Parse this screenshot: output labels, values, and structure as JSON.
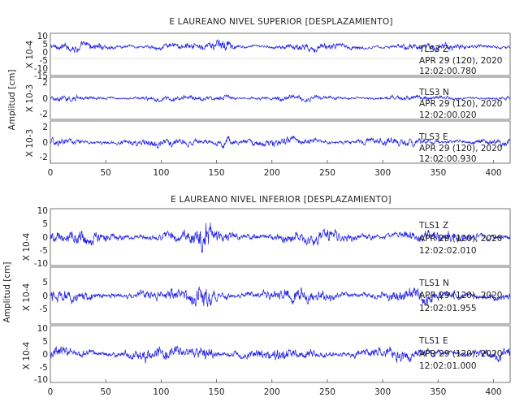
{
  "chart_data": [
    {
      "type": "line",
      "title": "E LAUREANO NIVEL SUPERIOR [DESPLAZAMIENTO]",
      "ylabel": "Amplitud [cm]",
      "xlim": [
        0,
        415
      ],
      "x_ticks": [
        "0",
        "50",
        "100",
        "150",
        "200",
        "250",
        "300",
        "350",
        "400"
      ],
      "series": [
        {
          "name": "TLS3  Z",
          "time": "APR 29 (120), 2020",
          "clock": "12:02:00.780",
          "scale_label": "X 10-4",
          "ylim": [
            -15,
            10
          ],
          "y_ticks": [
            "10",
            "5",
            "0",
            "-5",
            "-10",
            "-15"
          ],
          "color": "#1f1fe6",
          "baseline": 2,
          "amplitude": 4,
          "burst_center": 158
        },
        {
          "name": "TLS3  N",
          "time": "APR 29 (120), 2020",
          "clock": "12:02:00.020",
          "scale_label": "X 10-3",
          "ylim": [
            -2,
            2
          ],
          "y_ticks": [
            "2",
            "0",
            "-2"
          ],
          "color": "#1f1fe6",
          "baseline": 0,
          "amplitude": 0.45,
          "burst_center": 158
        },
        {
          "name": "TLS3  E",
          "time": "APR 29 (120), 2020",
          "clock": "12:02:00.930",
          "scale_label": "X 10-3",
          "ylim": [
            -3,
            3
          ],
          "y_ticks": [
            "2",
            "0",
            "-2"
          ],
          "color": "#1f1fe6",
          "baseline": 0,
          "amplitude": 1.0,
          "burst_center": 158
        }
      ]
    },
    {
      "type": "line",
      "title": "E LAUREANO NIVEL INFERIOR [DESPLAZAMIENTO]",
      "ylabel": "Amplitud [cm]",
      "xlim": [
        0,
        415
      ],
      "x_ticks": [
        "0",
        "50",
        "100",
        "150",
        "200",
        "250",
        "300",
        "350",
        "400"
      ],
      "series": [
        {
          "name": "TLS1  Z",
          "time": "APR 29 (120), 2020",
          "clock": "12:02:02.010",
          "scale_label": "X 10-4",
          "ylim": [
            -10,
            10
          ],
          "y_ticks": [
            "10",
            "5",
            "0",
            "-5",
            "-10"
          ],
          "color": "#1f1fe6",
          "baseline": 0,
          "amplitude": 4,
          "burst_center": 140
        },
        {
          "name": "TLS1  N",
          "time": "APR 29 (120), 2020",
          "clock": "12:02:01.955",
          "scale_label": "X 10-4",
          "ylim": [
            -10,
            10
          ],
          "y_ticks": [
            "5",
            "0",
            "-5"
          ],
          "color": "#1f1fe6",
          "baseline": 0,
          "amplitude": 4,
          "burst_center": 140
        },
        {
          "name": "TLS1  E",
          "time": "APR 29 (120), 2020",
          "clock": "12:02:01.000",
          "scale_label": "X 10-4",
          "ylim": [
            -10,
            10
          ],
          "y_ticks": [
            "10",
            "5",
            "0",
            "-5",
            "-10"
          ],
          "color": "#1f1fe6",
          "baseline": 0,
          "amplitude": 4,
          "burst_center": 140
        }
      ]
    }
  ]
}
